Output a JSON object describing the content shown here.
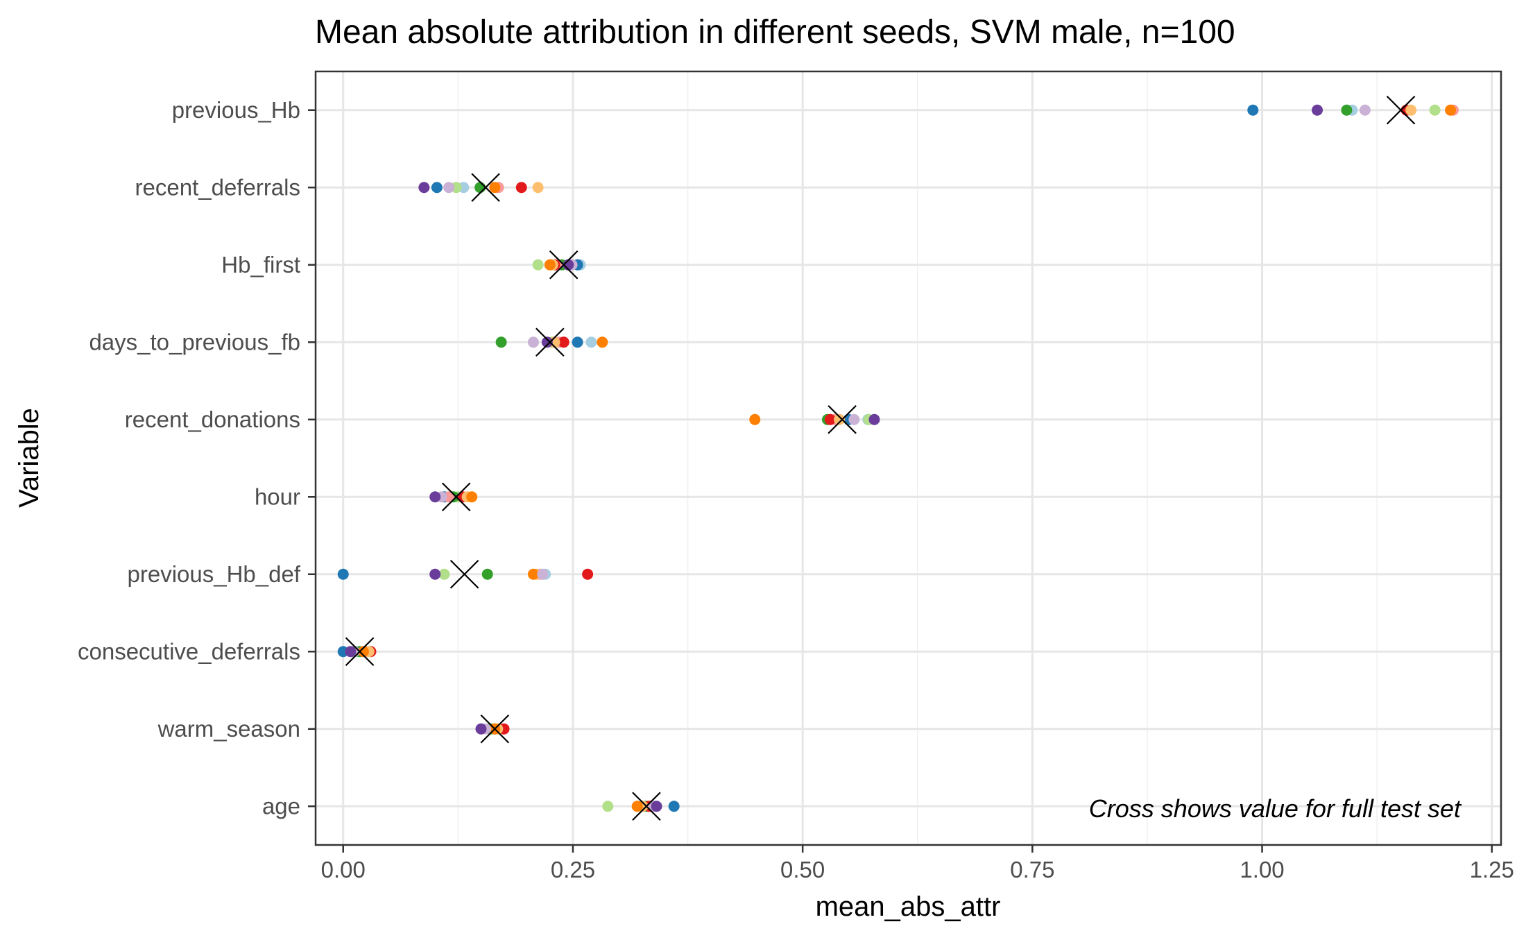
{
  "chart_data": {
    "type": "scatter",
    "title": "Mean absolute attribution in different seeds, SVM male, n=100",
    "xlabel": "mean_abs_attr",
    "ylabel": "Variable",
    "xlim": [
      -0.03,
      1.26
    ],
    "x_ticks": [
      0.0,
      0.25,
      0.5,
      0.75,
      1.0,
      1.25
    ],
    "x_tick_labels": [
      "0.00",
      "0.25",
      "0.50",
      "0.75",
      "1.00",
      "1.25"
    ],
    "grid": true,
    "annotation": "Cross shows value for full test set",
    "annotation_placement": "bottom-right",
    "categories": [
      "previous_Hb",
      "recent_deferrals",
      "Hb_first",
      "days_to_previous_fb",
      "recent_donations",
      "hour",
      "previous_Hb_def",
      "consecutive_deferrals",
      "warm_season",
      "age"
    ],
    "seed_colors": [
      "#A6CEE3",
      "#1F78B4",
      "#B2DF8A",
      "#33A02C",
      "#FB9A99",
      "#E31A1C",
      "#FDBF6F",
      "#FF7F00",
      "#CAB2D6",
      "#6A3D9A"
    ],
    "seed_values": {
      "previous_Hb": [
        1.098,
        0.99,
        1.188,
        1.092,
        1.208,
        1.157,
        1.162,
        1.205,
        1.112,
        1.06
      ],
      "recent_deferrals": [
        0.131,
        0.102,
        0.123,
        0.149,
        0.169,
        0.194,
        0.212,
        0.165,
        0.115,
        0.088
      ],
      "Hb_first": [
        0.258,
        0.255,
        0.212,
        0.238,
        0.233,
        0.23,
        0.228,
        0.225,
        0.249,
        0.245
      ],
      "days_to_previous_fb": [
        0.27,
        0.255,
        0.227,
        0.172,
        0.235,
        0.24,
        0.23,
        0.282,
        0.207,
        0.222
      ],
      "recent_donations": [
        0.571,
        0.55,
        0.572,
        0.527,
        0.535,
        0.53,
        0.54,
        0.448,
        0.556,
        0.578
      ],
      "hour": [
        0.117,
        0.11,
        0.125,
        0.12,
        0.115,
        0.13,
        0.135,
        0.14,
        0.107,
        0.1
      ],
      "previous_Hb_def": [
        0.22,
        0.0,
        0.11,
        0.157,
        0.214,
        0.266,
        0.21,
        0.207,
        0.217,
        0.1
      ],
      "consecutive_deferrals": [
        0.015,
        0.0,
        0.01,
        0.018,
        0.025,
        0.03,
        0.028,
        0.022,
        0.012,
        0.008
      ],
      "warm_season": [
        0.16,
        0.165,
        0.163,
        0.16,
        0.17,
        0.175,
        0.168,
        0.165,
        0.155,
        0.15
      ],
      "age": [
        0.328,
        0.36,
        0.288,
        0.33,
        0.335,
        0.333,
        0.326,
        0.32,
        0.338,
        0.341
      ]
    },
    "full_test_set": {
      "previous_Hb": 1.151,
      "recent_deferrals": 0.155,
      "Hb_first": 0.24,
      "days_to_previous_fb": 0.225,
      "recent_donations": 0.543,
      "hour": 0.123,
      "previous_Hb_def": 0.132,
      "consecutive_deferrals": 0.018,
      "warm_season": 0.165,
      "age": 0.33
    }
  }
}
